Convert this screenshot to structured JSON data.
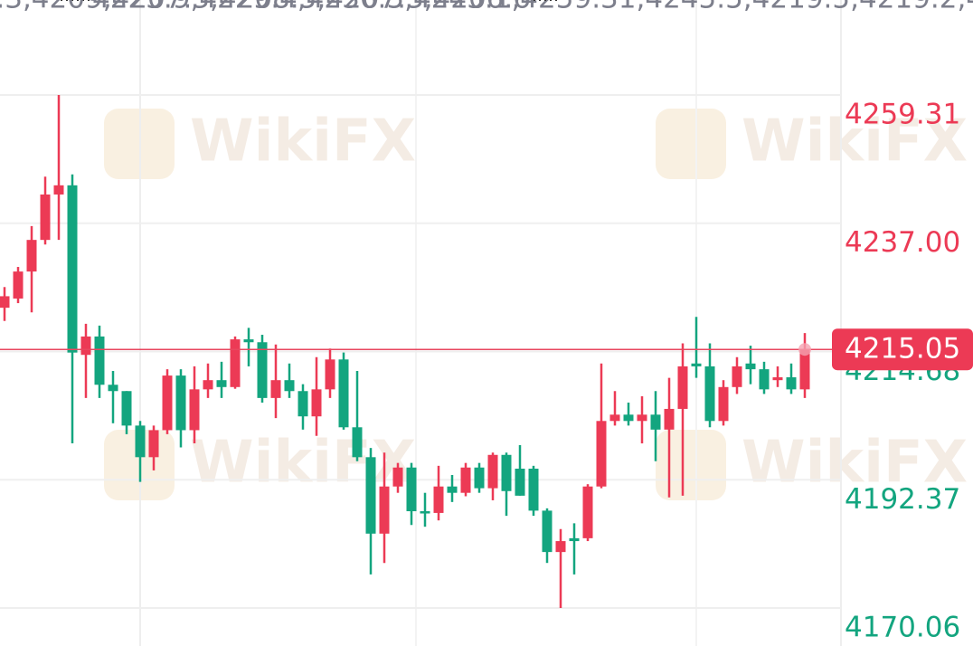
{
  "chart_data": {
    "type": "candlestick",
    "watermark": "WikiFX",
    "up_color": "#ec3a55",
    "down_color": "#13a57f",
    "ylim": [
      4163.45,
      4275.84
    ],
    "yticks": [
      4259.31,
      {
        "value": 4237,
        "label": "4237.00"
      },
      4214.68,
      4192.37,
      4170.06
    ],
    "grid": true,
    "current_price": 4215.05,
    "high": [
      4225.9,
      4229.4,
      4236.5,
      4245.1,
      4259.31,
      4245.5,
      4219.5,
      4219.2,
      4211.3,
      4207.8,
      4202.6,
      4201.8,
      4211.6,
      4211.6,
      4212.1,
      4212.6,
      4212.9,
      4217.3,
      4218.8,
      4217.6,
      4215.9,
      4212.6,
      4209.0,
      4213.7,
      4215.2,
      4214.5,
      4211.3,
      4197.9,
      4197.1,
      4195.3,
      4195.3,
      4190.1,
      4194.8,
      4193.2,
      4195.3,
      4195.3,
      4197.1,
      4197.1,
      4198.4,
      4194.8,
      4187.4,
      4183.8,
      4184.8,
      4191.6,
      4212.6,
      4207.8,
      4205.8,
      4206.9,
      4207.8,
      4210.1,
      4216.1,
      4220.7,
      4216.1,
      4209.7,
      4213.7,
      4215.7,
      4212.9,
      4212.1,
      4212.6,
      4217.9
    ],
    "low": [
      4220.0,
      4223.1,
      4221.5,
      4233.3,
      4234.1,
      4198.7,
      4206.6,
      4206.6,
      4202.2,
      4200.3,
      4192.0,
      4194.0,
      4200.3,
      4198.0,
      4198.7,
      4206.6,
      4206.6,
      4208.2,
      4212.1,
      4205.8,
      4203.1,
      4206.6,
      4201.1,
      4200.0,
      4206.6,
      4201.1,
      4195.6,
      4175.9,
      4177.9,
      4190.1,
      4184.5,
      4184.2,
      4185.3,
      4188.5,
      4189.5,
      4190.1,
      4188.8,
      4186.1,
      4189.6,
      4186.1,
      4177.9,
      4170.06,
      4175.9,
      4181.7,
      4190.9,
      4201.8,
      4201.8,
      4198.7,
      4195.6,
      4189.3,
      4189.6,
      4210.1,
      4201.5,
      4201.8,
      4207.3,
      4209.0,
      4207.3,
      4208.5,
      4207.3,
      4206.6
    ],
    "open": [
      4222.3,
      4223.9,
      4228.6,
      4234.1,
      4242.0,
      4243.6,
      4214.1,
      4217.3,
      4208.9,
      4207.8,
      4201.8,
      4196.3,
      4201.0,
      4210.5,
      4201.0,
      4208.1,
      4209.7,
      4208.5,
      4216.8,
      4216.3,
      4206.6,
      4209.7,
      4207.8,
      4203.4,
      4208.1,
      4213.3,
      4201.5,
      4196.3,
      4183.0,
      4191.2,
      4194.5,
      4186.9,
      4186.6,
      4191.2,
      4190.1,
      4194.5,
      4190.9,
      4196.7,
      4194.3,
      4194.3,
      4187.0,
      4179.8,
      4182.2,
      4182.2,
      4191.2,
      4202.6,
      4203.7,
      4202.6,
      4203.7,
      4201.1,
      4204.7,
      4212.6,
      4212.1,
      4202.6,
      4208.5,
      4212.6,
      4211.6,
      4209.7,
      4210.2,
      4208.1
    ],
    "close": [
      4224.3,
      4228.6,
      4234.1,
      4242.0,
      4243.6,
      4214.5,
      4217.3,
      4208.9,
      4207.8,
      4201.8,
      4196.3,
      4201.0,
      4210.5,
      4201.0,
      4208.1,
      4209.7,
      4208.5,
      4216.8,
      4216.3,
      4206.6,
      4209.7,
      4207.8,
      4203.4,
      4208.1,
      4213.3,
      4201.5,
      4196.3,
      4183.0,
      4191.2,
      4194.5,
      4186.9,
      4186.6,
      4191.2,
      4190.1,
      4194.5,
      4190.9,
      4196.7,
      4190.4,
      4189.6,
      4187.0,
      4179.8,
      4181.7,
      4181.7,
      4191.2,
      4202.6,
      4203.7,
      4202.6,
      4203.7,
      4201.1,
      4204.7,
      4212.1,
      4212.1,
      4202.6,
      4208.5,
      4212.1,
      4211.6,
      4208.1,
      4210.2,
      4208.1,
      4215.05
    ]
  }
}
